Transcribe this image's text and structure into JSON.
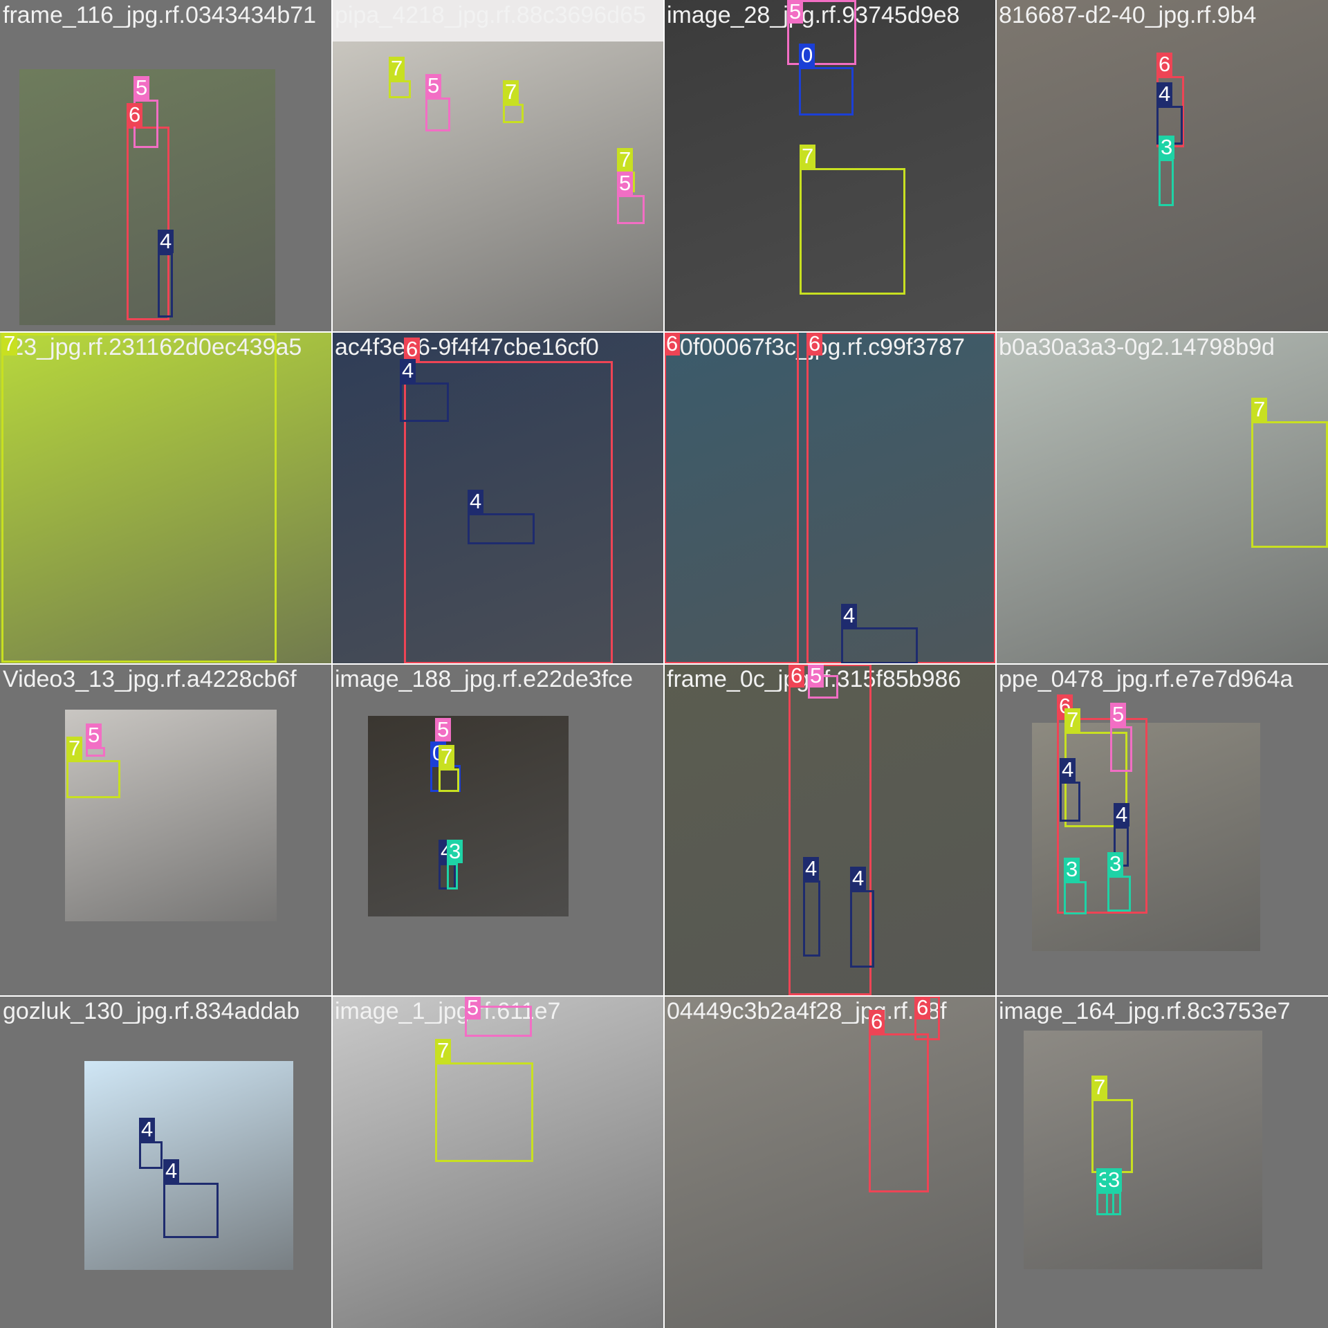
{
  "class_colors": {
    "0": "#1b3fd6",
    "3": "#1ed3a6",
    "4": "#1e2b6e",
    "5": "#f26ec4",
    "6": "#ee4455",
    "7": "#c8e021"
  },
  "tiles": [
    {
      "filename": "frame_116_jpg.rf.0343434b71",
      "bg": "#727272",
      "photo_color": "#6e7c5c",
      "boxes": [
        {
          "label": "6",
          "cls": "6"
        },
        {
          "label": "5",
          "cls": "5"
        },
        {
          "label": "4",
          "cls": "4"
        }
      ]
    },
    {
      "filename": "pipa_4218_jpg.rf.88c3696d65",
      "bg": "#eceaea",
      "photo_color": "#c9c6bf",
      "boxes": [
        {
          "label": "7",
          "cls": "7"
        },
        {
          "label": "5",
          "cls": "5"
        },
        {
          "label": "7",
          "cls": "7"
        },
        {
          "label": "5",
          "cls": "5"
        },
        {
          "label": "7",
          "cls": "7"
        }
      ]
    },
    {
      "filename": "image_28_jpg.rf.93745d9e8",
      "bg": "#2a2a2a",
      "photo_color": "#3b3b3b",
      "boxes": [
        {
          "label": "5",
          "cls": "5"
        },
        {
          "label": "0",
          "cls": "0"
        },
        {
          "label": "7",
          "cls": "7"
        }
      ]
    },
    {
      "filename": "816687-d2-40_jpg.rf.9b4",
      "bg": "#6f6a63",
      "photo_color": "#7d776f",
      "boxes": [
        {
          "label": "6",
          "cls": "6"
        },
        {
          "label": "4",
          "cls": "4"
        },
        {
          "label": "3",
          "cls": "3"
        }
      ]
    },
    {
      "filename": "r23_jpg.rf.231162d0ec439a5",
      "bg": "#b5d63a",
      "photo_color": "#b8d93c",
      "boxes": [
        {
          "label": "7",
          "cls": "7"
        }
      ]
    },
    {
      "filename": "ac4f3ec6-9f4f47cbe16cf0",
      "bg": "#5d6170",
      "photo_color": "#2f3d57",
      "boxes": [
        {
          "label": "6",
          "cls": "6"
        },
        {
          "label": "4",
          "cls": "4"
        },
        {
          "label": "4",
          "cls": "4"
        }
      ]
    },
    {
      "filename": "00f00067f3c_jpg.rf.c99f3787",
      "bg": "#38543f",
      "photo_color": "#3b5b6b",
      "boxes": [
        {
          "label": "6",
          "cls": "6"
        },
        {
          "label": "6",
          "cls": "6"
        },
        {
          "label": "4",
          "cls": "4"
        }
      ]
    },
    {
      "filename": "b0a30a3a3-0g2.14798b9d",
      "bg": "#8bc94a",
      "photo_color": "#b7bfb8",
      "boxes": [
        {
          "label": "7",
          "cls": "7"
        }
      ]
    },
    {
      "filename": "Video3_13_jpg.rf.a4228cb6f",
      "bg": "#727272",
      "photo_color": "#c9c6c2",
      "boxes": [
        {
          "label": "5",
          "cls": "5"
        },
        {
          "label": "7",
          "cls": "7"
        }
      ]
    },
    {
      "filename": "image_188_jpg.rf.e22de3fce",
      "bg": "#727272",
      "photo_color": "#3a3630",
      "boxes": [
        {
          "label": "5",
          "cls": "5"
        },
        {
          "label": "0",
          "cls": "0"
        },
        {
          "label": "7",
          "cls": "7"
        },
        {
          "label": "4",
          "cls": "4"
        },
        {
          "label": "3",
          "cls": "3"
        },
        {
          "label": "3",
          "cls": "3"
        }
      ]
    },
    {
      "filename": "frame_0c_jpg.rf.315f85b986",
      "bg": "#4e4f49",
      "photo_color": "#5b5d50",
      "boxes": [
        {
          "label": "6",
          "cls": "6"
        },
        {
          "label": "5",
          "cls": "5"
        },
        {
          "label": "4",
          "cls": "4"
        },
        {
          "label": "4",
          "cls": "4"
        }
      ]
    },
    {
      "filename": "ppe_0478_jpg.rf.e7e7d964a",
      "bg": "#727272",
      "photo_color": "#8d8a80",
      "boxes": [
        {
          "label": "6",
          "cls": "6"
        },
        {
          "label": "7",
          "cls": "7"
        },
        {
          "label": "5",
          "cls": "5"
        },
        {
          "label": "4",
          "cls": "4"
        },
        {
          "label": "4",
          "cls": "4"
        },
        {
          "label": "3",
          "cls": "3"
        },
        {
          "label": "3",
          "cls": "3"
        }
      ]
    },
    {
      "filename": "gozluk_130_jpg.rf.834addab",
      "bg": "#727272",
      "photo_color": "#cfe6f5",
      "boxes": [
        {
          "label": "4",
          "cls": "4"
        },
        {
          "label": "4",
          "cls": "4"
        }
      ]
    },
    {
      "filename": "image_1_jpg.rf.611e7",
      "bg": "#d6d6d6",
      "photo_color": "#c9c9c9",
      "boxes": [
        {
          "label": "5",
          "cls": "5"
        },
        {
          "label": "7",
          "cls": "7"
        }
      ]
    },
    {
      "filename": "04449c3b2a4f28_jpg.rf.38f",
      "bg": "#6d6b66",
      "photo_color": "#8a8780",
      "boxes": [
        {
          "label": "6",
          "cls": "6"
        },
        {
          "label": "6",
          "cls": "6"
        }
      ]
    },
    {
      "filename": "image_164_jpg.rf.8c3753e7",
      "bg": "#727272",
      "photo_color": "#8d8a84",
      "boxes": [
        {
          "label": "7",
          "cls": "7"
        },
        {
          "label": "3",
          "cls": "3"
        },
        {
          "label": "3",
          "cls": "3"
        }
      ]
    }
  ]
}
